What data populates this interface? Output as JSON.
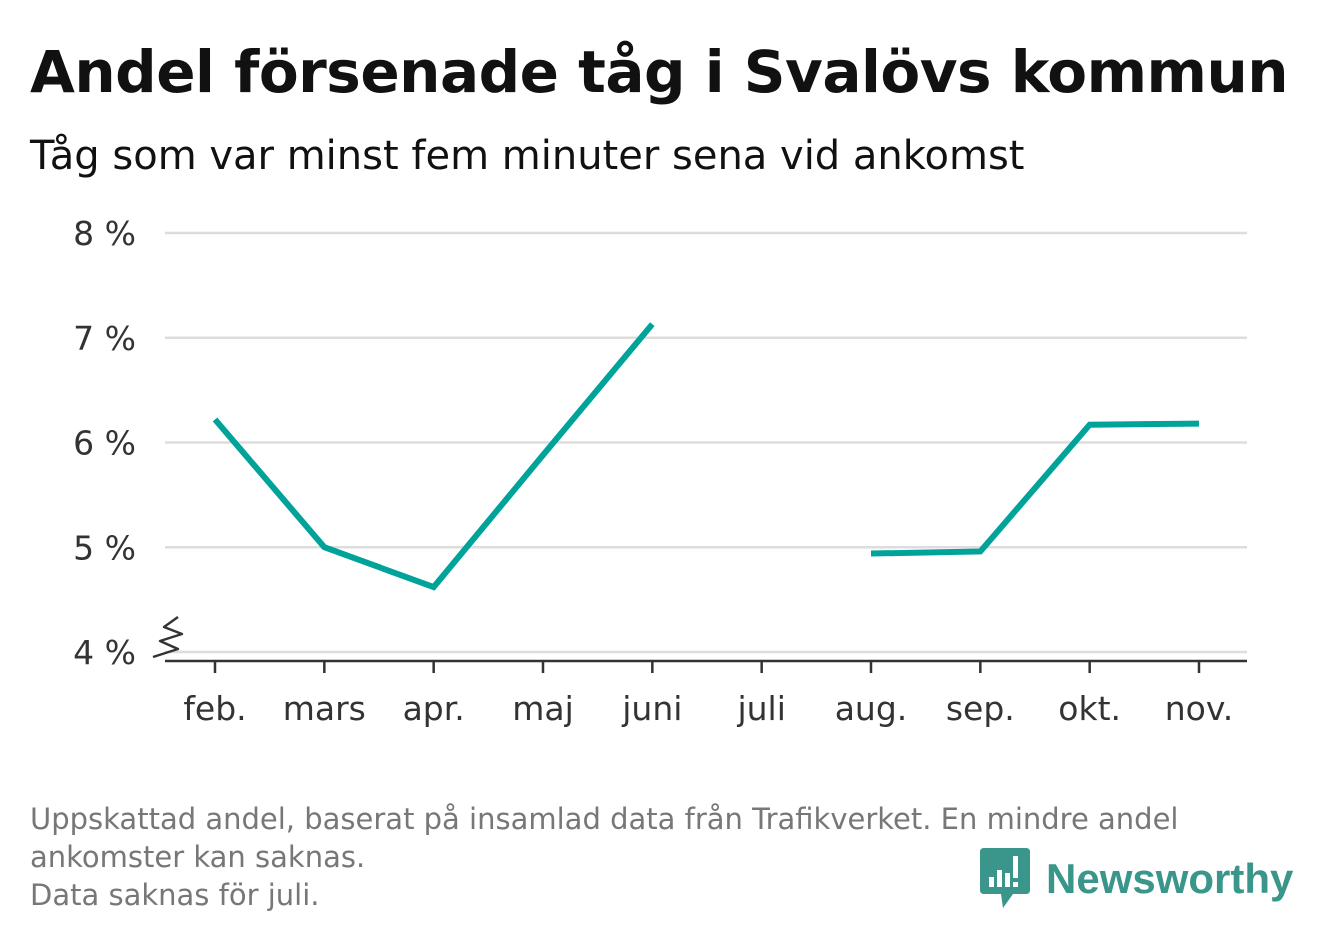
{
  "header": {
    "title": "Andel försenade tåg i Svalövs kommun",
    "subtitle": "Tåg som var minst fem minuter sena vid ankomst"
  },
  "chart_data": {
    "type": "line",
    "categories": [
      "feb.",
      "mars",
      "apr.",
      "maj",
      "juni",
      "juli",
      "aug.",
      "sep.",
      "okt.",
      "nov."
    ],
    "series": [
      {
        "values": [
          6.22,
          5.0,
          4.62,
          5.88,
          7.13,
          null,
          4.94,
          4.96,
          6.17,
          6.18
        ]
      }
    ],
    "y_ticks": [
      4,
      5,
      6,
      7,
      8
    ],
    "y_tick_labels": [
      "4 %",
      "5 %",
      "6 %",
      "7 %",
      "8 %"
    ],
    "ylim": [
      4,
      8
    ],
    "y_axis_break": true,
    "grid": "horizontal",
    "legend": "none",
    "line_color": "#00a39a",
    "grid_color": "#dddddd",
    "axis_color": "#333333"
  },
  "footer": {
    "note_lines": [
      "Uppskattad andel, baserat på insamlad data från Trafikverket. En mindre andel",
      "ankomster kan saknas.",
      "Data saknas för juli."
    ],
    "brand": "Newsworthy",
    "brand_color": "#3a958a"
  },
  "icons": {
    "brand": "newsworthy-logo-icon"
  }
}
